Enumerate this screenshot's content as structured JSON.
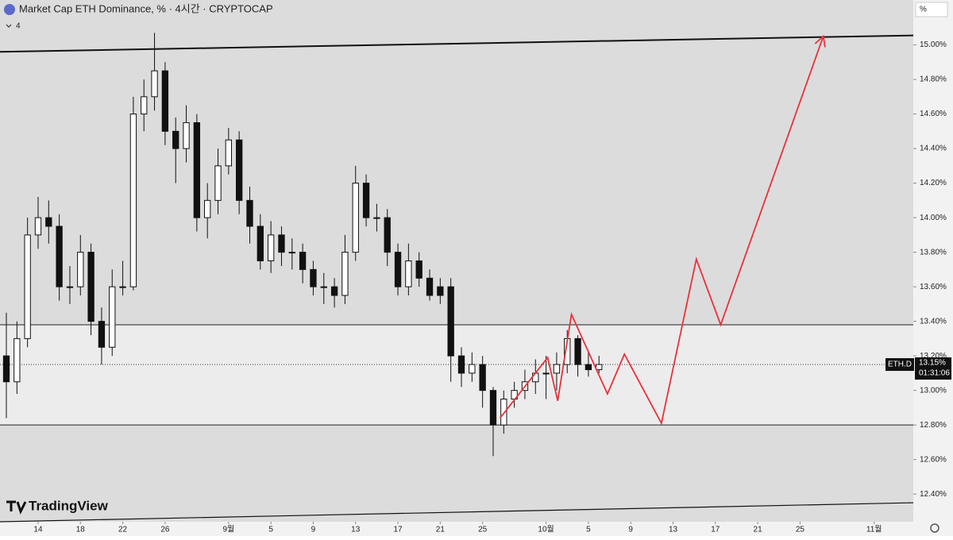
{
  "header": {
    "title": "Market Cap ETH Dominance, % · 4시간 · CRYPTOCAP",
    "indicator_count": "4",
    "scale_button": "%",
    "logo": "TradingView"
  },
  "chart_data": {
    "type": "candlestick",
    "symbol_tag": "ETH.D",
    "price_line": {
      "value": 13.15,
      "label": "13.15%"
    },
    "countdown": "01:31:06",
    "xlim": [
      10.4,
      96.7
    ],
    "ylim": [
      12.24,
      15.26
    ],
    "xticks": [
      {
        "value": 14,
        "label": "14"
      },
      {
        "value": 18,
        "label": "18"
      },
      {
        "value": 22,
        "label": "22"
      },
      {
        "value": 26,
        "label": "26"
      },
      {
        "value": 32,
        "label": "9월"
      },
      {
        "value": 36,
        "label": "5"
      },
      {
        "value": 40,
        "label": "9"
      },
      {
        "value": 44,
        "label": "13"
      },
      {
        "value": 48,
        "label": "17"
      },
      {
        "value": 52,
        "label": "21"
      },
      {
        "value": 56,
        "label": "25"
      },
      {
        "value": 62,
        "label": "10월"
      },
      {
        "value": 66,
        "label": "5"
      },
      {
        "value": 70,
        "label": "9"
      },
      {
        "value": 74,
        "label": "13"
      },
      {
        "value": 78,
        "label": "17"
      },
      {
        "value": 82,
        "label": "21"
      },
      {
        "value": 86,
        "label": "25"
      },
      {
        "value": 93,
        "label": "11월"
      }
    ],
    "yticks": [
      {
        "value": 12.4,
        "label": "12.40%"
      },
      {
        "value": 12.6,
        "label": "12.60%"
      },
      {
        "value": 12.8,
        "label": "12.80%"
      },
      {
        "value": 13.0,
        "label": "13.00%"
      },
      {
        "value": 13.2,
        "label": "13.20%"
      },
      {
        "value": 13.4,
        "label": "13.40%"
      },
      {
        "value": 13.6,
        "label": "13.60%"
      },
      {
        "value": 13.8,
        "label": "13.80%"
      },
      {
        "value": 14.0,
        "label": "14.00%"
      },
      {
        "value": 14.2,
        "label": "14.20%"
      },
      {
        "value": 14.4,
        "label": "14.40%"
      },
      {
        "value": 14.6,
        "label": "14.60%"
      },
      {
        "value": 14.8,
        "label": "14.80%"
      },
      {
        "value": 15.0,
        "label": "15.00%"
      }
    ],
    "up_color": "#ffffff",
    "down_color": "#111111",
    "x": [
      11,
      12,
      13,
      14,
      15,
      16,
      17,
      18,
      19,
      20,
      21,
      22,
      23,
      24,
      25,
      26,
      27,
      28,
      29,
      30,
      31,
      32,
      33,
      34,
      35,
      36,
      37,
      38,
      39,
      40,
      41,
      42,
      43,
      44,
      45,
      46,
      47,
      48,
      49,
      50,
      51,
      52,
      53,
      54,
      55,
      56,
      57,
      58,
      59,
      60,
      61,
      62,
      63,
      64,
      65,
      66,
      67
    ],
    "open": [
      13.2,
      13.05,
      13.3,
      13.9,
      14.0,
      13.95,
      13.6,
      13.6,
      13.8,
      13.4,
      13.25,
      13.6,
      13.6,
      14.6,
      14.7,
      14.85,
      14.5,
      14.4,
      14.55,
      14.0,
      14.1,
      14.3,
      14.45,
      14.1,
      13.95,
      13.75,
      13.9,
      13.8,
      13.8,
      13.7,
      13.6,
      13.6,
      13.55,
      13.8,
      14.2,
      14.0,
      14.0,
      13.8,
      13.6,
      13.75,
      13.65,
      13.6,
      13.6,
      13.2,
      13.1,
      13.15,
      13.0,
      12.8,
      12.95,
      13.0,
      13.05,
      13.1,
      13.1,
      13.15,
      13.3,
      13.15,
      13.12
    ],
    "high": [
      13.45,
      13.4,
      14.0,
      14.12,
      14.1,
      14.02,
      13.72,
      13.9,
      13.85,
      13.48,
      13.7,
      13.75,
      14.7,
      14.8,
      15.07,
      14.9,
      14.58,
      14.65,
      14.6,
      14.2,
      14.4,
      14.52,
      14.5,
      14.18,
      14.02,
      13.98,
      13.95,
      13.88,
      13.85,
      13.75,
      13.68,
      13.65,
      13.9,
      14.3,
      14.25,
      14.08,
      14.05,
      13.85,
      13.85,
      13.8,
      13.7,
      13.65,
      13.65,
      13.25,
      13.22,
      13.2,
      13.02,
      13.0,
      13.05,
      13.12,
      13.18,
      13.2,
      13.22,
      13.35,
      13.32,
      13.22,
      13.2
    ],
    "low": [
      12.84,
      12.98,
      13.25,
      13.82,
      13.85,
      13.52,
      13.5,
      13.55,
      13.32,
      13.15,
      13.2,
      13.55,
      13.58,
      14.5,
      14.62,
      14.42,
      14.2,
      14.32,
      13.92,
      13.88,
      14.02,
      14.25,
      14.02,
      13.85,
      13.7,
      13.68,
      13.72,
      13.7,
      13.62,
      13.55,
      13.5,
      13.48,
      13.5,
      13.75,
      13.95,
      13.92,
      13.72,
      13.55,
      13.55,
      13.6,
      13.52,
      13.5,
      13.05,
      13.02,
      13.05,
      12.9,
      12.62,
      12.75,
      12.9,
      12.95,
      12.98,
      12.95,
      13.0,
      13.1,
      13.08,
      13.08,
      13.1
    ],
    "close": [
      13.05,
      13.3,
      13.9,
      14.0,
      13.95,
      13.6,
      13.6,
      13.8,
      13.4,
      13.25,
      13.6,
      13.6,
      14.6,
      14.7,
      14.85,
      14.5,
      14.4,
      14.55,
      14.0,
      14.1,
      14.3,
      14.45,
      14.1,
      13.95,
      13.75,
      13.9,
      13.8,
      13.8,
      13.7,
      13.6,
      13.6,
      13.55,
      13.8,
      14.2,
      14.0,
      14.0,
      13.8,
      13.6,
      13.75,
      13.65,
      13.55,
      13.55,
      13.2,
      13.1,
      13.15,
      13.0,
      12.8,
      12.95,
      13.0,
      13.05,
      13.1,
      13.1,
      13.15,
      13.3,
      13.15,
      13.12,
      13.15
    ],
    "levels": [
      13.38,
      12.8
    ],
    "zone_color": "#ececec",
    "trend_lines": [
      {
        "x": [
          10.4,
          96.7
        ],
        "values": [
          14.96,
          15.055
        ]
      },
      {
        "x": [
          10.4,
          96.7
        ],
        "values": [
          12.24,
          12.35
        ]
      }
    ],
    "projection": {
      "color": "#e8323c",
      "x": [
        57.65,
        62.15,
        63.1,
        64.4,
        67.8,
        69.4,
        72.9,
        76.2,
        78.5,
        88.2
      ],
      "values": [
        12.84,
        13.19,
        12.94,
        13.44,
        12.98,
        13.21,
        12.81,
        13.76,
        13.38,
        15.05
      ]
    }
  }
}
